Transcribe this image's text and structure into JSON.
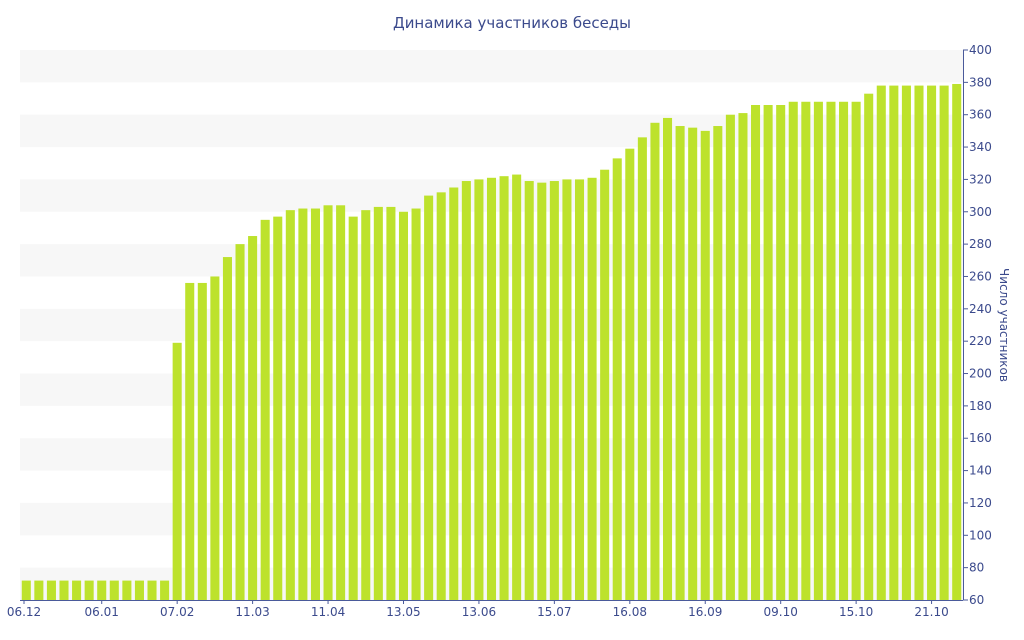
{
  "chart_data": {
    "type": "bar",
    "title": "Динамика участников беседы",
    "xlabel": "",
    "ylabel": "Число участников",
    "ylim": [
      60,
      400
    ],
    "y_ticks": [
      60,
      80,
      100,
      120,
      140,
      160,
      180,
      200,
      220,
      240,
      260,
      280,
      300,
      320,
      340,
      360,
      380,
      400
    ],
    "y_axis_position": "right",
    "x_tick_labels": [
      "06.12",
      "06.01",
      "07.02",
      "11.03",
      "11.04",
      "13.05",
      "13.06",
      "15.07",
      "16.08",
      "16.09",
      "09.10",
      "15.10",
      "21.10"
    ],
    "x_tick_bar_index": [
      0,
      6,
      12,
      18,
      24,
      30,
      36,
      42,
      48,
      54,
      60,
      66,
      72
    ],
    "grid": "alternating horizontal bands",
    "colors": {
      "bar": "#bde22c",
      "band": "#f7f7f7",
      "axis": "#4a5a9a",
      "text": "#3b4a8c"
    },
    "values": [
      72,
      72,
      72,
      72,
      72,
      72,
      72,
      72,
      72,
      72,
      72,
      72,
      219,
      256,
      256,
      260,
      272,
      280,
      285,
      295,
      297,
      301,
      302,
      302,
      304,
      304,
      297,
      301,
      303,
      303,
      300,
      302,
      310,
      312,
      315,
      319,
      320,
      321,
      322,
      323,
      319,
      318,
      319,
      320,
      320,
      321,
      326,
      333,
      339,
      346,
      355,
      358,
      353,
      352,
      350,
      353,
      360,
      361,
      366,
      366,
      366,
      368,
      368,
      368,
      368,
      368,
      368,
      373,
      378,
      378,
      378,
      378,
      378,
      378,
      379
    ]
  }
}
